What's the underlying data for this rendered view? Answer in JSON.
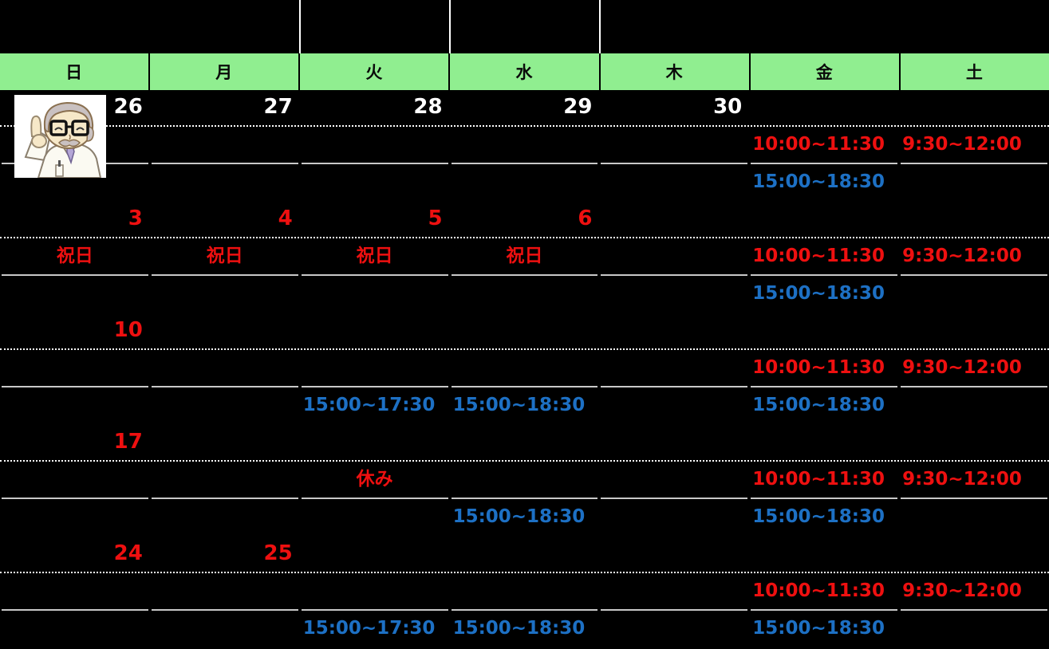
{
  "palette": {
    "green": "#90ee90",
    "red": "#ee1010",
    "blue": "#1d70c4",
    "white": "#ffffff",
    "gray": "#c8c8c8",
    "black": "#000000"
  },
  "icons": {
    "doctor": "doctor-pointing-up-illustration"
  },
  "header": {
    "days": [
      "日",
      "月",
      "火",
      "水",
      "木",
      "金",
      "土"
    ]
  },
  "weeks": [
    {
      "dates": [
        {
          "t": "26",
          "k": "date"
        },
        {
          "t": "27",
          "k": "date"
        },
        {
          "t": "28",
          "k": "date"
        },
        {
          "t": "29",
          "k": "date"
        },
        {
          "t": "30",
          "k": "date"
        },
        {
          "t": "",
          "k": "empty"
        },
        {
          "t": "",
          "k": "empty"
        }
      ],
      "morning": [
        {
          "t": "",
          "k": "empty"
        },
        {
          "t": "",
          "k": "empty"
        },
        {
          "t": "",
          "k": "empty"
        },
        {
          "t": "",
          "k": "empty"
        },
        {
          "t": "",
          "k": "empty"
        },
        {
          "t": "10:00~11:30",
          "k": "time"
        },
        {
          "t": "9:30~12:00",
          "k": "time"
        }
      ],
      "afternoon": [
        {
          "t": "",
          "k": "empty"
        },
        {
          "t": "",
          "k": "empty"
        },
        {
          "t": "",
          "k": "empty"
        },
        {
          "t": "",
          "k": "empty"
        },
        {
          "t": "",
          "k": "empty"
        },
        {
          "t": "15:00~18:30",
          "k": "time"
        },
        {
          "t": "",
          "k": "empty"
        }
      ]
    },
    {
      "dates": [
        {
          "t": "3",
          "k": "holiday"
        },
        {
          "t": "4",
          "k": "holiday"
        },
        {
          "t": "5",
          "k": "holiday"
        },
        {
          "t": "6",
          "k": "holiday"
        },
        {
          "t": "",
          "k": "empty"
        },
        {
          "t": "",
          "k": "empty"
        },
        {
          "t": "",
          "k": "empty"
        }
      ],
      "morning": [
        {
          "t": "祝日",
          "k": "label"
        },
        {
          "t": "祝日",
          "k": "label"
        },
        {
          "t": "祝日",
          "k": "label"
        },
        {
          "t": "祝日",
          "k": "label"
        },
        {
          "t": "",
          "k": "empty"
        },
        {
          "t": "10:00~11:30",
          "k": "time"
        },
        {
          "t": "9:30~12:00",
          "k": "time"
        }
      ],
      "afternoon": [
        {
          "t": "",
          "k": "empty"
        },
        {
          "t": "",
          "k": "empty"
        },
        {
          "t": "",
          "k": "empty"
        },
        {
          "t": "",
          "k": "empty"
        },
        {
          "t": "",
          "k": "empty"
        },
        {
          "t": "15:00~18:30",
          "k": "time"
        },
        {
          "t": "",
          "k": "empty"
        }
      ]
    },
    {
      "dates": [
        {
          "t": "10",
          "k": "holiday"
        },
        {
          "t": "",
          "k": "empty"
        },
        {
          "t": "",
          "k": "empty"
        },
        {
          "t": "",
          "k": "empty"
        },
        {
          "t": "",
          "k": "empty"
        },
        {
          "t": "",
          "k": "empty"
        },
        {
          "t": "",
          "k": "empty"
        }
      ],
      "morning": [
        {
          "t": "",
          "k": "empty"
        },
        {
          "t": "",
          "k": "empty"
        },
        {
          "t": "",
          "k": "empty"
        },
        {
          "t": "",
          "k": "empty"
        },
        {
          "t": "",
          "k": "empty"
        },
        {
          "t": "10:00~11:30",
          "k": "time"
        },
        {
          "t": "9:30~12:00",
          "k": "time"
        }
      ],
      "afternoon": [
        {
          "t": "",
          "k": "empty"
        },
        {
          "t": "",
          "k": "empty"
        },
        {
          "t": "15:00~17:30",
          "k": "time"
        },
        {
          "t": "15:00~18:30",
          "k": "time"
        },
        {
          "t": "",
          "k": "empty"
        },
        {
          "t": "15:00~18:30",
          "k": "time"
        },
        {
          "t": "",
          "k": "empty"
        }
      ]
    },
    {
      "dates": [
        {
          "t": "17",
          "k": "holiday"
        },
        {
          "t": "",
          "k": "empty"
        },
        {
          "t": "",
          "k": "empty"
        },
        {
          "t": "",
          "k": "empty"
        },
        {
          "t": "",
          "k": "empty"
        },
        {
          "t": "",
          "k": "empty"
        },
        {
          "t": "",
          "k": "empty"
        }
      ],
      "morning": [
        {
          "t": "",
          "k": "empty"
        },
        {
          "t": "",
          "k": "empty"
        },
        {
          "t": "休み",
          "k": "label"
        },
        {
          "t": "",
          "k": "empty"
        },
        {
          "t": "",
          "k": "empty"
        },
        {
          "t": "10:00~11:30",
          "k": "time"
        },
        {
          "t": "9:30~12:00",
          "k": "time"
        }
      ],
      "afternoon": [
        {
          "t": "",
          "k": "empty"
        },
        {
          "t": "",
          "k": "empty"
        },
        {
          "t": "",
          "k": "empty"
        },
        {
          "t": "15:00~18:30",
          "k": "time"
        },
        {
          "t": "",
          "k": "empty"
        },
        {
          "t": "15:00~18:30",
          "k": "time"
        },
        {
          "t": "",
          "k": "empty"
        }
      ]
    },
    {
      "dates": [
        {
          "t": "24",
          "k": "holiday"
        },
        {
          "t": "25",
          "k": "holiday"
        },
        {
          "t": "",
          "k": "empty"
        },
        {
          "t": "",
          "k": "empty"
        },
        {
          "t": "",
          "k": "empty"
        },
        {
          "t": "",
          "k": "empty"
        },
        {
          "t": "",
          "k": "empty"
        }
      ],
      "morning": [
        {
          "t": "",
          "k": "empty"
        },
        {
          "t": "",
          "k": "empty"
        },
        {
          "t": "",
          "k": "empty"
        },
        {
          "t": "",
          "k": "empty"
        },
        {
          "t": "",
          "k": "empty"
        },
        {
          "t": "10:00~11:30",
          "k": "time"
        },
        {
          "t": "9:30~12:00",
          "k": "time"
        }
      ],
      "afternoon": [
        {
          "t": "",
          "k": "empty"
        },
        {
          "t": "",
          "k": "empty"
        },
        {
          "t": "15:00~17:30",
          "k": "time"
        },
        {
          "t": "15:00~18:30",
          "k": "time"
        },
        {
          "t": "",
          "k": "empty"
        },
        {
          "t": "15:00~18:30",
          "k": "time"
        },
        {
          "t": "",
          "k": "empty"
        }
      ]
    }
  ]
}
